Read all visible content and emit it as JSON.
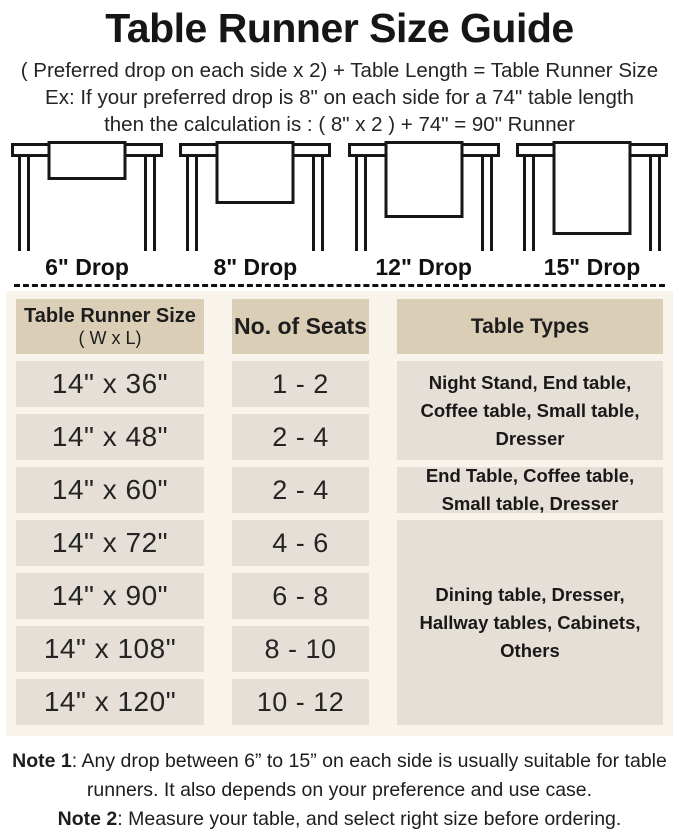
{
  "page": {
    "title": "Table Runner Size Guide",
    "formula": "( Preferred drop on each side x 2) + Table Length = Table Runner Size",
    "example_line1": "Ex: If your preferred drop is 8\" on each side for a 74\" table length",
    "example_line2": "then the calculation is : ( 8\" x 2 ) + 74\" = 90\" Runner"
  },
  "figures": {
    "drops": [
      {
        "label": "6\" Drop"
      },
      {
        "label": "8\" Drop"
      },
      {
        "label": "12\" Drop"
      },
      {
        "label": "15\" Drop"
      }
    ]
  },
  "size_table": {
    "header": {
      "col1_line1": "Table Runner Size",
      "col1_line2": "( W x L)",
      "col2": "No. of Seats",
      "col3": "Table Types"
    },
    "rows": [
      {
        "size": "14\" x 36\"",
        "seats": "1 - 2"
      },
      {
        "size": "14\" x 48\"",
        "seats": "2 - 4"
      },
      {
        "size": "14\" x 60\"",
        "seats": "2 - 4"
      },
      {
        "size": "14\" x 72\"",
        "seats": "4 - 6"
      },
      {
        "size": "14\" x 90\"",
        "seats": "6 - 8"
      },
      {
        "size": "14\" x 108\"",
        "seats": "8 - 10"
      },
      {
        "size": "14\" x 120\"",
        "seats": "10 - 12"
      }
    ],
    "type_groups": [
      {
        "text": "Night Stand, End table, Coffee table, Small table, Dresser"
      },
      {
        "text": "End Table, Coffee table, Small table, Dresser"
      },
      {
        "text": "Dining table, Dresser, Hallway tables, Cabinets, Others"
      }
    ]
  },
  "notes": [
    {
      "label": "Note 1",
      "text": ": Any drop between 6” to 15” on each side is usually suitable for table runners. It also depends on your preference and use case."
    },
    {
      "label": "Note 2",
      "text": ": Measure your table, and select right size before ordering."
    }
  ],
  "colors": {
    "header_cell_bg": "#dbceb7",
    "data_cell_bg": "#e6dfd7",
    "table_container_bg": "#f8f3eb",
    "line_color": "#161616",
    "text_color": "#1d1d1d"
  },
  "chart_data": {
    "type": "table",
    "title": "Table Runner Size Guide",
    "columns": [
      "Table Runner Size ( W x L)",
      "No. of Seats",
      "Table Types"
    ],
    "rows": [
      [
        "14\" x 36\"",
        "1 - 2",
        "Night Stand, End table, Coffee table, Small table, Dresser"
      ],
      [
        "14\" x 48\"",
        "2 - 4",
        "Night Stand, End table, Coffee table, Small table, Dresser"
      ],
      [
        "14\" x 60\"",
        "2 - 4",
        "End Table, Coffee table, Small table, Dresser"
      ],
      [
        "14\" x 72\"",
        "4 - 6",
        "Dining table, Dresser, Hallway tables, Cabinets, Others"
      ],
      [
        "14\" x 90\"",
        "6 - 8",
        "Dining table, Dresser, Hallway tables, Cabinets, Others"
      ],
      [
        "14\" x 108\"",
        "8 - 10",
        "Dining table, Dresser, Hallway tables, Cabinets, Others"
      ],
      [
        "14\" x 120\"",
        "10 - 12",
        "Dining table, Dresser, Hallway tables, Cabinets, Others"
      ]
    ],
    "drop_options": [
      "6\" Drop",
      "8\" Drop",
      "12\" Drop",
      "15\" Drop"
    ],
    "formula": "( Preferred drop on each side x 2) + Table Length = Table Runner Size",
    "example": "( 8\" x 2 ) + 74\" = 90\" Runner"
  }
}
